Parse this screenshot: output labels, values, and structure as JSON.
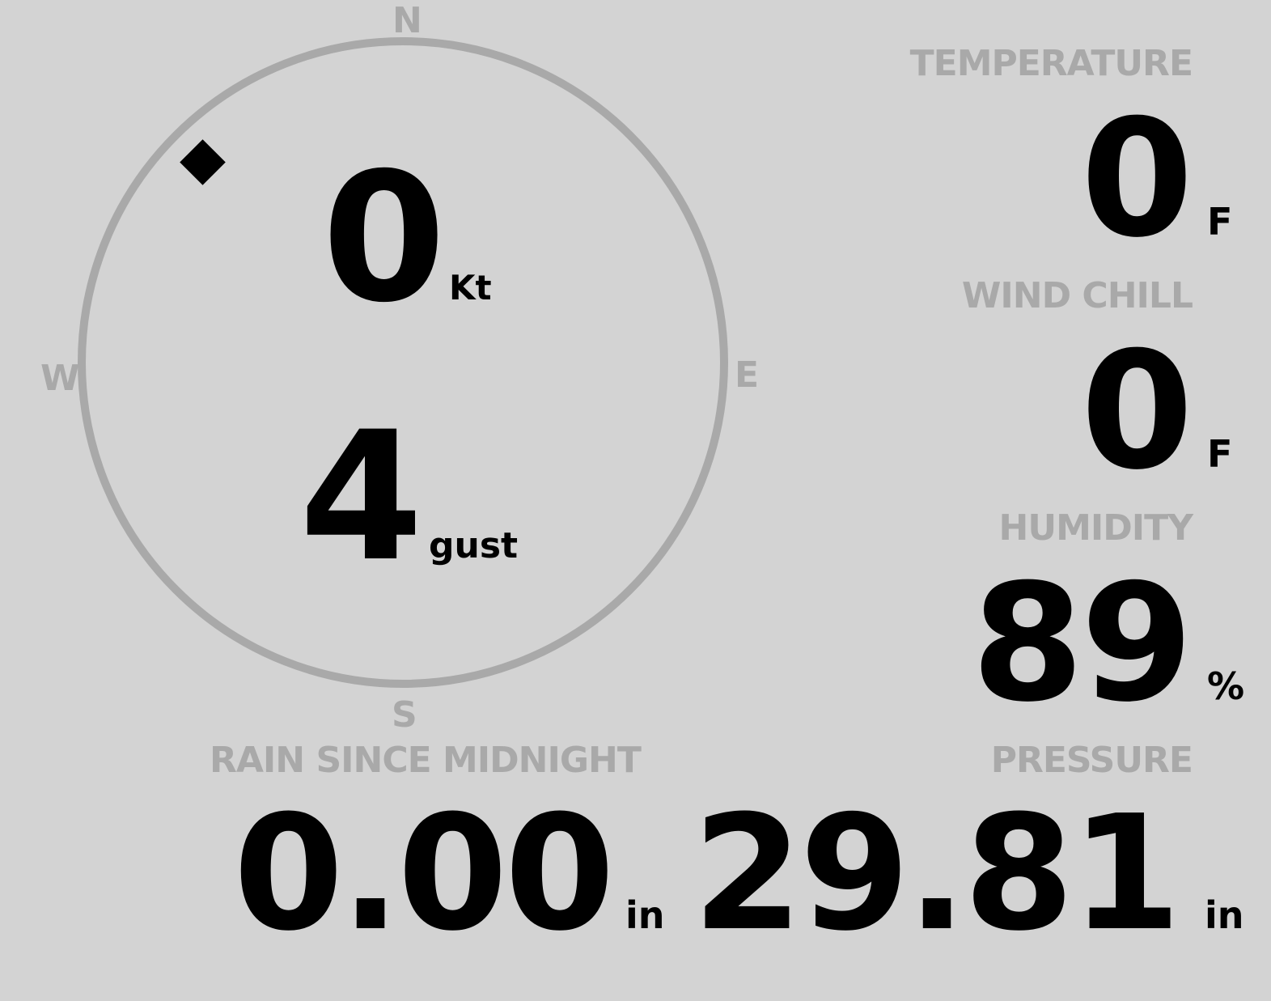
{
  "wind": {
    "compass": {
      "north": "N",
      "east": "E",
      "south": "S",
      "west": "W"
    },
    "direction_degrees": 315,
    "speed": "0",
    "speed_unit": "Kt",
    "gust": "4",
    "gust_label": "gust"
  },
  "temperature": {
    "label": "TEMPERATURE",
    "value": "0",
    "unit": "F"
  },
  "wind_chill": {
    "label": "WIND CHILL",
    "value": "0",
    "unit": "F"
  },
  "humidity": {
    "label": "HUMIDITY",
    "value": "89",
    "unit": "%"
  },
  "rain": {
    "label": "RAIN SINCE MIDNIGHT",
    "value": "0.00",
    "unit": "in"
  },
  "pressure": {
    "label": "PRESSURE",
    "value": "29.81",
    "unit": "in"
  },
  "colors": {
    "background": "#d3d3d3",
    "muted": "#a9a9a9",
    "value": "#000000"
  }
}
